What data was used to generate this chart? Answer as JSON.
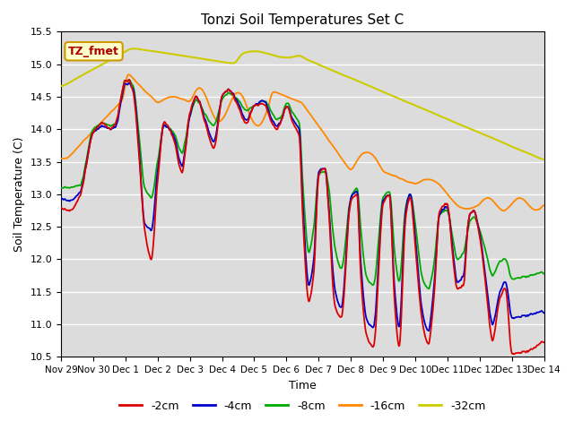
{
  "title": "Tonzi Soil Temperatures Set C",
  "xlabel": "Time",
  "ylabel": "Soil Temperature (C)",
  "ylim": [
    10.5,
    15.5
  ],
  "bg_color": "#dcdcdc",
  "fig_color": "#ffffff",
  "annotation_label": "TZ_fmet",
  "annotation_bg": "#ffffcc",
  "annotation_border": "#cc9900",
  "annotation_text_color": "#aa0000",
  "legend_entries": [
    "-2cm",
    "-4cm",
    "-8cm",
    "-16cm",
    "-32cm"
  ],
  "line_colors": [
    "#dd0000",
    "#0000cc",
    "#00aa00",
    "#ff8800",
    "#cccc00"
  ],
  "line_widths": [
    1.3,
    1.3,
    1.3,
    1.3,
    1.5
  ],
  "yticks": [
    10.5,
    11.0,
    11.5,
    12.0,
    12.5,
    13.0,
    13.5,
    14.0,
    14.5,
    15.0,
    15.5
  ],
  "xtick_labels": [
    "Nov 29",
    "Nov 30",
    "Dec 1",
    "Dec 2",
    "Dec 3",
    "Dec 4",
    "Dec 5",
    "Dec 6",
    "Dec 7",
    "Dec 8",
    "Dec 9",
    "Dec 10",
    "Dec 11",
    "Dec 12",
    "Dec 13",
    "Dec 14"
  ],
  "n_days": 15,
  "pts_per_day": 96
}
